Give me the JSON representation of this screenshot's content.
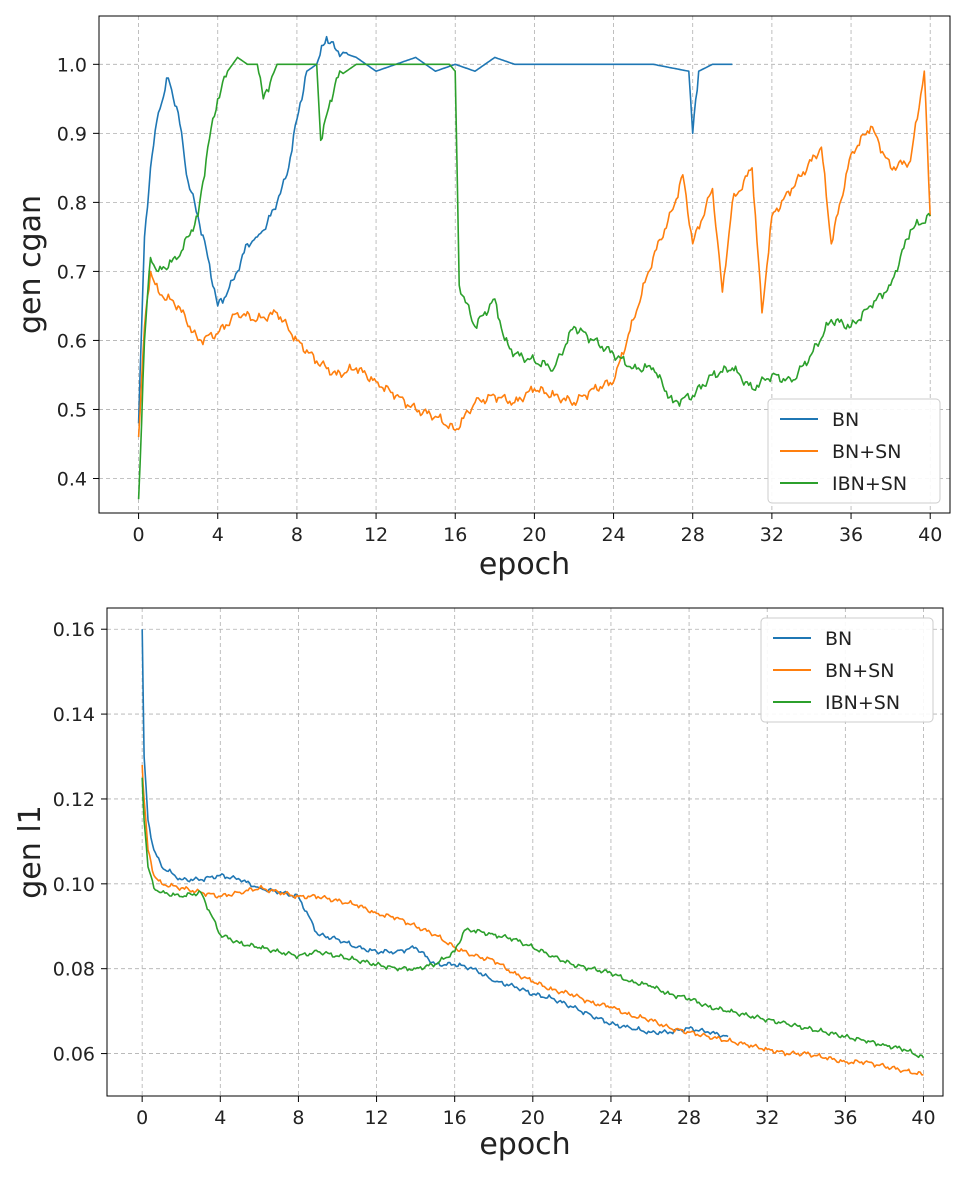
{
  "colors": {
    "BN": "#1f77b4",
    "BN+SN": "#ff7f0e",
    "IBN+SN": "#2ca02c",
    "grid": "#b0b0b0",
    "axis": "#000000"
  },
  "chart_data": [
    {
      "type": "line",
      "title": "",
      "xlabel": "epoch",
      "ylabel": "gen cgan",
      "xlim": [
        -2,
        41
      ],
      "ylim": [
        0.35,
        1.07
      ],
      "xticks": [
        0,
        4,
        8,
        12,
        16,
        20,
        24,
        28,
        32,
        36,
        40
      ],
      "xtick_labels": [
        "0",
        "4",
        "8",
        "12",
        "16",
        "20",
        "24",
        "28",
        "32",
        "36",
        "40"
      ],
      "yticks": [
        0.4,
        0.5,
        0.6,
        0.7,
        0.8,
        0.9,
        1.0
      ],
      "ytick_labels": [
        "0.4",
        "0.5",
        "0.6",
        "0.7",
        "0.8",
        "0.9",
        "1.0"
      ],
      "grid": true,
      "legend": [
        "BN",
        "BN+SN",
        "IBN+SN"
      ],
      "legend_loc": "lower-right",
      "series": [
        {
          "name": "BN",
          "x": [
            0,
            0.3,
            0.6,
            1.0,
            1.5,
            2.0,
            2.5,
            3.0,
            3.5,
            4.0,
            4.5,
            5.0,
            5.5,
            6.0,
            6.5,
            7.0,
            7.5,
            8.0,
            8.5,
            9.0,
            9.5,
            10,
            11,
            12,
            13,
            14,
            15,
            16,
            17,
            18,
            19,
            20,
            22,
            24,
            26,
            27.8,
            28,
            28.3,
            29,
            30
          ],
          "y": [
            0.48,
            0.75,
            0.85,
            0.93,
            0.98,
            0.93,
            0.83,
            0.78,
            0.72,
            0.65,
            0.67,
            0.7,
            0.74,
            0.75,
            0.77,
            0.8,
            0.84,
            0.92,
            0.99,
            1.0,
            1.04,
            1.02,
            1.01,
            0.99,
            1.0,
            1.01,
            0.99,
            1.0,
            0.99,
            1.01,
            1.0,
            1.0,
            1.0,
            1.0,
            1.0,
            0.99,
            0.9,
            0.99,
            1.0,
            1.0
          ]
        },
        {
          "name": "BN+SN",
          "x": [
            0,
            0.3,
            0.6,
            1,
            2,
            3,
            4,
            5,
            6,
            7,
            8,
            9,
            10,
            11,
            12,
            13,
            14,
            15,
            16,
            17,
            18,
            19,
            20,
            21,
            22,
            23,
            24,
            25,
            26,
            27,
            27.5,
            28,
            29,
            29.5,
            30,
            31,
            31.5,
            32,
            33,
            34,
            34.5,
            35,
            36,
            37,
            38,
            39,
            39.7,
            40
          ],
          "y": [
            0.46,
            0.62,
            0.7,
            0.67,
            0.65,
            0.6,
            0.61,
            0.64,
            0.63,
            0.64,
            0.6,
            0.57,
            0.55,
            0.56,
            0.54,
            0.52,
            0.5,
            0.49,
            0.47,
            0.51,
            0.52,
            0.51,
            0.53,
            0.52,
            0.51,
            0.53,
            0.54,
            0.63,
            0.72,
            0.79,
            0.84,
            0.74,
            0.82,
            0.67,
            0.8,
            0.85,
            0.64,
            0.78,
            0.82,
            0.86,
            0.88,
            0.74,
            0.87,
            0.91,
            0.85,
            0.86,
            0.99,
            0.78
          ]
        },
        {
          "name": "IBN+SN",
          "x": [
            0,
            0.3,
            0.6,
            1,
            2,
            3,
            3.5,
            4,
            4.5,
            5,
            5.5,
            6,
            6.3,
            7,
            8,
            9,
            9.2,
            10,
            11,
            12,
            13,
            14,
            15,
            15.7,
            16,
            16.2,
            17,
            18,
            18.5,
            19,
            20,
            21,
            22,
            23,
            24,
            25,
            26,
            27,
            28,
            29,
            30,
            31,
            32,
            33,
            34,
            35,
            36,
            37,
            38,
            39,
            40
          ],
          "y": [
            0.37,
            0.6,
            0.72,
            0.7,
            0.72,
            0.78,
            0.88,
            0.95,
            0.99,
            1.01,
            1.0,
            1.0,
            0.95,
            1.0,
            1.0,
            1.0,
            0.89,
            0.98,
            1.0,
            1.0,
            1.0,
            1.0,
            1.0,
            1.0,
            0.99,
            0.68,
            0.62,
            0.66,
            0.6,
            0.58,
            0.57,
            0.56,
            0.62,
            0.6,
            0.58,
            0.56,
            0.56,
            0.51,
            0.52,
            0.55,
            0.56,
            0.53,
            0.55,
            0.54,
            0.58,
            0.63,
            0.62,
            0.65,
            0.68,
            0.76,
            0.78
          ]
        }
      ]
    },
    {
      "type": "line",
      "title": "",
      "xlabel": "epoch",
      "ylabel": "gen l1",
      "xlim": [
        -1.8,
        41
      ],
      "ylim": [
        0.05,
        0.165
      ],
      "xticks": [
        0,
        4,
        8,
        12,
        16,
        20,
        24,
        28,
        32,
        36,
        40
      ],
      "xtick_labels": [
        "0",
        "4",
        "8",
        "12",
        "16",
        "20",
        "24",
        "28",
        "32",
        "36",
        "40"
      ],
      "yticks": [
        0.06,
        0.08,
        0.1,
        0.12,
        0.14,
        0.16
      ],
      "ytick_labels": [
        "0.06",
        "0.08",
        "0.10",
        "0.12",
        "0.14",
        "0.16"
      ],
      "grid": true,
      "legend": [
        "BN",
        "BN+SN",
        "IBN+SN"
      ],
      "legend_loc": "upper-right",
      "series": [
        {
          "name": "BN",
          "x": [
            0,
            0.1,
            0.3,
            0.6,
            1,
            2,
            3,
            4,
            5,
            6,
            7,
            8,
            9,
            10,
            11,
            12,
            13,
            14,
            15,
            16,
            17,
            18,
            19,
            20,
            21,
            22,
            23,
            24,
            25,
            26,
            27,
            28,
            29,
            30
          ],
          "y": [
            0.16,
            0.13,
            0.115,
            0.108,
            0.104,
            0.101,
            0.101,
            0.102,
            0.101,
            0.099,
            0.098,
            0.097,
            0.088,
            0.087,
            0.085,
            0.084,
            0.084,
            0.085,
            0.081,
            0.081,
            0.08,
            0.077,
            0.076,
            0.074,
            0.073,
            0.071,
            0.069,
            0.067,
            0.066,
            0.065,
            0.065,
            0.066,
            0.065,
            0.064
          ]
        },
        {
          "name": "BN+SN",
          "x": [
            0,
            0.1,
            0.3,
            0.6,
            1,
            2,
            3,
            4,
            5,
            6,
            7,
            8,
            9,
            10,
            11,
            12,
            13,
            14,
            15,
            16,
            17,
            18,
            19,
            20,
            21,
            22,
            23,
            24,
            25,
            26,
            27,
            28,
            29,
            30,
            31,
            32,
            33,
            34,
            35,
            36,
            37,
            38,
            39,
            40
          ],
          "y": [
            0.128,
            0.12,
            0.108,
            0.102,
            0.1,
            0.099,
            0.098,
            0.097,
            0.098,
            0.099,
            0.098,
            0.097,
            0.097,
            0.096,
            0.095,
            0.093,
            0.092,
            0.09,
            0.088,
            0.085,
            0.083,
            0.082,
            0.079,
            0.077,
            0.075,
            0.074,
            0.072,
            0.071,
            0.069,
            0.068,
            0.066,
            0.065,
            0.064,
            0.063,
            0.062,
            0.061,
            0.06,
            0.06,
            0.059,
            0.058,
            0.058,
            0.057,
            0.056,
            0.055
          ]
        },
        {
          "name": "IBN+SN",
          "x": [
            0,
            0.1,
            0.3,
            0.6,
            1,
            2,
            3,
            3.5,
            4,
            5,
            6,
            7,
            8,
            9,
            10,
            11,
            12,
            13,
            14,
            15,
            16,
            16.5,
            17,
            18,
            19,
            20,
            21,
            22,
            23,
            24,
            25,
            26,
            27,
            28,
            29,
            30,
            31,
            32,
            33,
            34,
            35,
            36,
            37,
            38,
            39,
            40
          ],
          "y": [
            0.125,
            0.115,
            0.104,
            0.099,
            0.098,
            0.097,
            0.098,
            0.093,
            0.088,
            0.086,
            0.085,
            0.084,
            0.083,
            0.084,
            0.083,
            0.082,
            0.081,
            0.08,
            0.08,
            0.081,
            0.084,
            0.089,
            0.089,
            0.088,
            0.087,
            0.085,
            0.083,
            0.081,
            0.08,
            0.079,
            0.077,
            0.076,
            0.074,
            0.073,
            0.071,
            0.07,
            0.069,
            0.068,
            0.067,
            0.066,
            0.065,
            0.064,
            0.063,
            0.062,
            0.061,
            0.059
          ]
        }
      ]
    }
  ]
}
